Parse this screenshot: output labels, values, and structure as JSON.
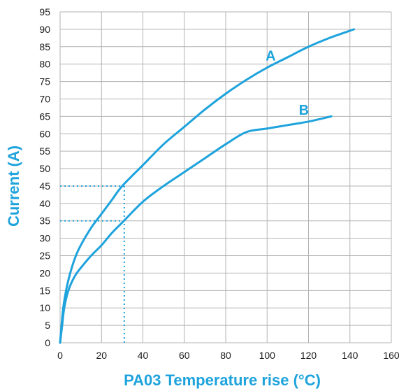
{
  "colors": {
    "accent": "#1ea3dc",
    "grid": "#b3b3b3",
    "text": "#1a1a1a"
  },
  "chart_data": {
    "type": "line",
    "title": "",
    "xlabel": "PA03 Temperature rise (°C)",
    "ylabel": "Current (A)",
    "xlim": [
      0,
      160
    ],
    "ylim": [
      0,
      95
    ],
    "xticks": [
      0,
      20,
      40,
      60,
      80,
      100,
      120,
      140,
      160
    ],
    "yticks": [
      0,
      5,
      10,
      15,
      20,
      25,
      30,
      35,
      40,
      45,
      50,
      55,
      60,
      65,
      70,
      75,
      80,
      85,
      90,
      95
    ],
    "grid": true,
    "series": [
      {
        "name": "A",
        "x": [
          0,
          1,
          2,
          4,
          7,
          10,
          15,
          20,
          25,
          30,
          40,
          50,
          60,
          70,
          80,
          90,
          100,
          110,
          120,
          130,
          142
        ],
        "y": [
          0,
          7,
          12,
          18,
          24,
          28,
          33,
          37,
          41,
          45,
          51,
          57,
          62,
          67,
          71.5,
          75.5,
          79,
          82,
          85,
          87.5,
          90
        ]
      },
      {
        "name": "B",
        "x": [
          0,
          1,
          2,
          4,
          7,
          10,
          15,
          20,
          25,
          30,
          40,
          50,
          60,
          70,
          80,
          90,
          100,
          110,
          120,
          131
        ],
        "y": [
          0,
          5,
          10,
          15,
          19,
          21.5,
          25,
          28,
          31.5,
          34.5,
          40.5,
          45,
          49,
          53,
          57,
          60.5,
          61.5,
          62.5,
          63.5,
          65
        ]
      }
    ],
    "annotations": [
      {
        "type": "dotted-guides",
        "x": 31,
        "y": [
          35,
          45
        ]
      }
    ]
  }
}
